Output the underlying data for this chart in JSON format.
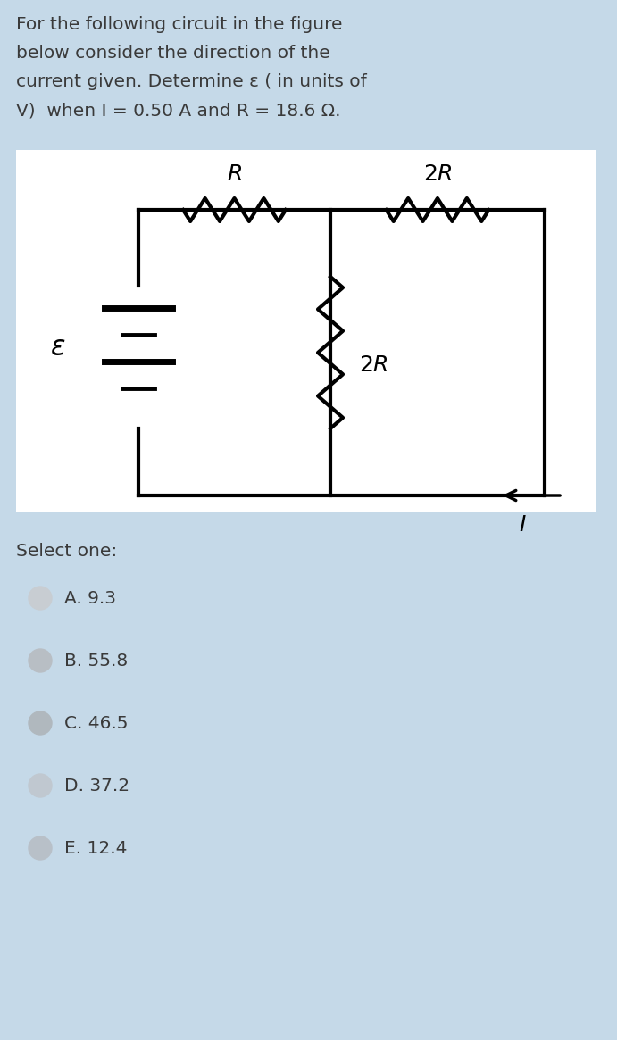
{
  "bg_color": "#c5d9e8",
  "circuit_bg": "#ffffff",
  "text_color": "#3a3a3a",
  "question_line1": "For the following circuit in the figure",
  "question_line2": "below consider the direction of the",
  "question_line3": "current given. Determine ε ( in units of",
  "question_line4": "V)  when I = 0.50 A and R = 18.6 Ω.",
  "select_label": "Select one:",
  "options": [
    "A. 9.3",
    "B. 55.8",
    "C. 46.5",
    "D. 37.2",
    "E. 12.4"
  ],
  "radio_colors": [
    "#c8cdd2",
    "#b8bec4",
    "#b0b8be",
    "#c0c8d0",
    "#b8c0c8"
  ],
  "font_size_question": 14.5,
  "font_size_options": 14.5,
  "font_size_circuit_labels": 15
}
